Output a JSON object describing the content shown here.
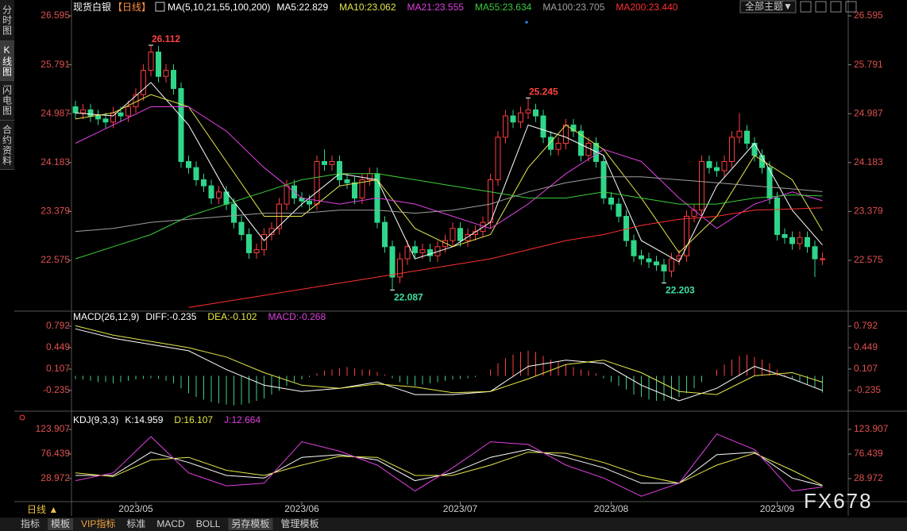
{
  "header": {
    "instrument": "现货白银",
    "period": "【日线】",
    "theme_button": "全部主题▼"
  },
  "sidebar": [
    "分时图",
    "K线图",
    "闪电图",
    "合约资料"
  ],
  "footer": {
    "period": "日线 ▲",
    "tabs": [
      "指标",
      "模板",
      "VIP指标",
      "标准",
      "MACD",
      "BOLL",
      "另存模板",
      "管理模板"
    ]
  },
  "watermark": "FX678",
  "chart_data": [
    {
      "type": "candlestick",
      "indicator": "MA(5,10,21,55,100,200)",
      "up_color": "#ff3b3b",
      "down_color": "#2fd68a",
      "ylim": [
        21.766,
        26.595
      ],
      "yticks": [
        26.595,
        25.791,
        24.987,
        24.183,
        23.379,
        22.575
      ],
      "date_ticks": [
        {
          "index": 8,
          "label": "2023/05"
        },
        {
          "index": 30,
          "label": "2023/06"
        },
        {
          "index": 51,
          "label": "2023/07"
        },
        {
          "index": 71,
          "label": "2023/08"
        },
        {
          "index": 93,
          "label": "2023/09"
        }
      ],
      "open": [
        25.1,
        25.0,
        25.05,
        24.95,
        24.9,
        24.85,
        25.0,
        24.95,
        25.1,
        25.3,
        25.7,
        26.0,
        25.6,
        25.7,
        25.4,
        24.2,
        24.1,
        23.9,
        23.8,
        23.6,
        23.7,
        23.5,
        23.2,
        23.0,
        22.7,
        22.75,
        23.0,
        23.1,
        23.5,
        23.8,
        23.6,
        23.55,
        23.5,
        24.2,
        24.15,
        24.2,
        23.9,
        23.85,
        23.6,
        23.9,
        24.0,
        23.2,
        22.8,
        22.3,
        22.6,
        22.8,
        22.7,
        22.75,
        22.65,
        22.8,
        22.9,
        23.1,
        22.9,
        23.0,
        23.05,
        23.2,
        23.9,
        24.6,
        24.95,
        24.85,
        25.0,
        25.05,
        24.95,
        24.6,
        24.4,
        24.5,
        24.8,
        24.7,
        24.3,
        24.5,
        24.2,
        23.6,
        23.5,
        23.3,
        22.9,
        22.65,
        22.6,
        22.55,
        22.5,
        22.4,
        22.6,
        22.65,
        23.3,
        23.4,
        24.2,
        24.1,
        24.05,
        24.2,
        24.6,
        24.7,
        24.5,
        24.3,
        24.1,
        23.6,
        23.0,
        22.95,
        22.85,
        22.95,
        22.8,
        22.6
      ],
      "high": [
        25.2,
        25.15,
        25.15,
        25.05,
        25.0,
        25.1,
        25.1,
        25.2,
        25.4,
        25.8,
        26.112,
        26.1,
        25.8,
        25.8,
        25.5,
        24.3,
        24.2,
        24.0,
        23.9,
        23.8,
        23.8,
        23.6,
        23.3,
        23.1,
        22.85,
        23.1,
        23.2,
        23.6,
        23.9,
        23.9,
        23.7,
        23.65,
        24.3,
        24.4,
        24.3,
        24.3,
        24.0,
        23.95,
        24.0,
        24.1,
        24.1,
        23.3,
        22.9,
        22.7,
        22.9,
        22.9,
        22.85,
        22.85,
        22.9,
        23.0,
        23.2,
        23.2,
        23.1,
        23.15,
        23.3,
        24.0,
        24.7,
        25.05,
        25.05,
        25.1,
        25.245,
        25.15,
        25.05,
        24.7,
        24.6,
        24.9,
        24.9,
        24.8,
        24.6,
        24.6,
        24.3,
        23.7,
        23.6,
        23.4,
        23.0,
        22.75,
        22.7,
        22.65,
        22.6,
        22.7,
        22.75,
        23.4,
        23.5,
        24.3,
        24.3,
        24.2,
        24.3,
        24.7,
        25.0,
        24.8,
        24.6,
        24.4,
        24.2,
        23.7,
        23.1,
        23.05,
        23.05,
        23.05,
        22.9,
        22.7
      ],
      "low": [
        24.9,
        24.9,
        24.85,
        24.8,
        24.75,
        24.75,
        24.85,
        24.85,
        25.0,
        25.2,
        25.6,
        25.5,
        25.5,
        25.3,
        24.1,
        24.0,
        23.8,
        23.7,
        23.5,
        23.5,
        23.4,
        23.1,
        22.9,
        22.6,
        22.6,
        22.65,
        22.9,
        23.0,
        23.4,
        23.5,
        23.45,
        23.4,
        23.4,
        24.05,
        24.05,
        23.8,
        23.75,
        23.5,
        23.5,
        23.8,
        23.1,
        22.7,
        22.087,
        22.2,
        22.5,
        22.6,
        22.6,
        22.55,
        22.55,
        22.7,
        22.8,
        22.8,
        22.8,
        22.9,
        22.95,
        23.1,
        23.8,
        24.5,
        24.75,
        24.75,
        24.9,
        24.85,
        24.5,
        24.3,
        24.3,
        24.4,
        24.6,
        24.2,
        24.2,
        24.1,
        23.5,
        23.4,
        23.2,
        22.8,
        22.55,
        22.5,
        22.45,
        22.4,
        22.203,
        22.3,
        22.5,
        22.55,
        23.2,
        23.3,
        24.0,
        23.95,
        23.95,
        24.1,
        24.5,
        24.4,
        24.2,
        24.0,
        23.5,
        22.9,
        22.85,
        22.75,
        22.75,
        22.7,
        22.3,
        22.5
      ],
      "close": [
        25.0,
        25.05,
        24.95,
        24.9,
        24.85,
        25.0,
        24.95,
        25.1,
        25.3,
        25.7,
        26.0,
        25.6,
        25.7,
        25.4,
        24.2,
        24.1,
        23.9,
        23.8,
        23.6,
        23.7,
        23.5,
        23.2,
        23.0,
        22.7,
        22.75,
        23.0,
        23.1,
        23.5,
        23.8,
        23.6,
        23.55,
        23.5,
        24.2,
        24.15,
        24.2,
        23.9,
        23.85,
        23.6,
        23.9,
        24.0,
        23.2,
        22.8,
        22.3,
        22.6,
        22.8,
        22.7,
        22.75,
        22.65,
        22.8,
        22.9,
        23.1,
        22.9,
        23.0,
        23.05,
        23.2,
        23.9,
        24.6,
        24.95,
        24.85,
        25.0,
        25.05,
        24.95,
        24.6,
        24.4,
        24.5,
        24.8,
        24.7,
        24.3,
        24.5,
        24.2,
        23.6,
        23.5,
        23.3,
        22.9,
        22.65,
        22.6,
        22.55,
        22.5,
        22.4,
        22.6,
        22.65,
        23.3,
        23.4,
        24.2,
        24.1,
        24.05,
        24.2,
        24.6,
        24.7,
        24.5,
        24.3,
        24.1,
        23.6,
        23.0,
        22.95,
        22.85,
        22.95,
        22.8,
        22.6,
        22.6
      ],
      "annotated_highs": [
        10,
        60
      ],
      "annotated_lows": [
        42,
        78
      ],
      "line_index": [
        0,
        5,
        10,
        15,
        20,
        25,
        30,
        35,
        40,
        45,
        50,
        55,
        60,
        65,
        70,
        75,
        80,
        85,
        90,
        95,
        99
      ],
      "series": [
        {
          "name": "MA5",
          "readout": "MA5:22.829",
          "color": "#ffffff",
          "values": [
            25.0,
            24.95,
            25.5,
            24.8,
            23.7,
            22.9,
            23.5,
            24.0,
            23.9,
            22.6,
            22.8,
            23.2,
            24.8,
            24.6,
            24.3,
            22.9,
            22.55,
            23.8,
            24.5,
            23.4,
            22.829
          ]
        },
        {
          "name": "MA10",
          "readout": "MA10:23.062",
          "color": "#e8e84a",
          "values": [
            24.9,
            25.0,
            25.3,
            25.1,
            24.2,
            23.3,
            23.3,
            23.8,
            23.9,
            23.1,
            22.8,
            23.0,
            24.1,
            24.8,
            24.4,
            23.6,
            22.7,
            23.3,
            24.3,
            23.9,
            23.062
          ]
        },
        {
          "name": "MA21",
          "readout": "MA21:23.555",
          "color": "#e040e0",
          "values": [
            24.5,
            24.8,
            25.1,
            25.1,
            24.7,
            24.1,
            23.6,
            23.5,
            23.6,
            23.5,
            23.3,
            23.1,
            23.5,
            24.0,
            24.4,
            24.2,
            23.6,
            23.1,
            23.5,
            23.7,
            23.555
          ]
        },
        {
          "name": "MA55",
          "readout": "MA55:23.634",
          "color": "#3ccc3c",
          "values": [
            22.6,
            22.8,
            23.0,
            23.3,
            23.5,
            23.7,
            23.9,
            24.0,
            24.0,
            23.9,
            23.8,
            23.7,
            23.6,
            23.6,
            23.7,
            23.6,
            23.5,
            23.5,
            23.6,
            23.65,
            23.634
          ]
        },
        {
          "name": "MA100",
          "readout": "MA100:23.705",
          "color": "#a0a0a0",
          "values": [
            23.05,
            23.1,
            23.2,
            23.25,
            23.3,
            23.35,
            23.35,
            23.4,
            23.4,
            23.35,
            23.4,
            23.5,
            23.7,
            23.85,
            23.95,
            23.95,
            23.9,
            23.85,
            23.8,
            23.75,
            23.705
          ]
        },
        {
          "name": "MA200",
          "readout": "MA200:23.440",
          "color": "#ff3030",
          "values": [
            null,
            null,
            null,
            21.8,
            21.9,
            22.0,
            22.1,
            22.2,
            22.3,
            22.4,
            22.5,
            22.6,
            22.75,
            22.9,
            23.0,
            23.15,
            23.25,
            23.3,
            23.4,
            23.42,
            23.44
          ]
        }
      ]
    },
    {
      "type": "macd",
      "indicator": "MACD(26,12,9)",
      "ylim": [
        -0.527,
        0.995
      ],
      "yticks": [
        0.792,
        0.449,
        0.107,
        -0.235
      ],
      "line_index": [
        0,
        5,
        10,
        15,
        20,
        25,
        30,
        35,
        40,
        45,
        50,
        55,
        60,
        65,
        70,
        75,
        80,
        85,
        90,
        95,
        99
      ],
      "series": [
        {
          "name": "DIFF",
          "readout": "DIFF:-0.235",
          "color": "#ffffff",
          "values": [
            0.75,
            0.6,
            0.5,
            0.4,
            0.1,
            -0.15,
            -0.25,
            -0.2,
            -0.1,
            -0.3,
            -0.3,
            -0.25,
            0.15,
            0.25,
            0.2,
            -0.15,
            -0.4,
            -0.2,
            0.15,
            -0.05,
            -0.235
          ]
        },
        {
          "name": "DEA",
          "readout": "DEA:-0.102",
          "color": "#e8e84a",
          "values": [
            0.8,
            0.65,
            0.55,
            0.45,
            0.3,
            0.05,
            -0.15,
            -0.2,
            -0.13,
            -0.18,
            -0.27,
            -0.25,
            -0.05,
            0.18,
            0.25,
            0.05,
            -0.25,
            -0.3,
            0.0,
            0.05,
            -0.102
          ]
        }
      ],
      "histogram": {
        "name": "MACD",
        "readout": "MACD:-0.268",
        "color": "#e040e0",
        "up_color": "#ff4040",
        "down_color": "#40d080",
        "values": [
          -0.05,
          -0.06,
          -0.08,
          -0.1,
          -0.1,
          -0.12,
          -0.1,
          -0.08,
          -0.06,
          -0.05,
          -0.04,
          -0.05,
          -0.08,
          -0.12,
          -0.2,
          -0.28,
          -0.34,
          -0.38,
          -0.42,
          -0.44,
          -0.46,
          -0.47,
          -0.46,
          -0.44,
          -0.4,
          -0.36,
          -0.3,
          -0.24,
          -0.16,
          -0.1,
          -0.06,
          -0.02,
          0.04,
          0.08,
          0.1,
          0.12,
          0.14,
          0.12,
          0.1,
          0.1,
          0.06,
          0.02,
          -0.04,
          -0.1,
          -0.14,
          -0.16,
          -0.14,
          -0.12,
          -0.1,
          -0.08,
          -0.06,
          -0.05,
          -0.04,
          -0.02,
          0.0,
          0.1,
          0.2,
          0.28,
          0.34,
          0.38,
          0.4,
          0.38,
          0.32,
          0.26,
          0.22,
          0.18,
          0.14,
          0.1,
          0.08,
          0.04,
          -0.04,
          -0.1,
          -0.16,
          -0.22,
          -0.3,
          -0.34,
          -0.38,
          -0.4,
          -0.4,
          -0.38,
          -0.34,
          -0.28,
          -0.2,
          -0.1,
          0.0,
          0.1,
          0.18,
          0.26,
          0.32,
          0.34,
          0.3,
          0.26,
          0.2,
          0.1,
          0.02,
          -0.04,
          -0.1,
          -0.14,
          -0.18,
          -0.268
        ]
      }
    },
    {
      "type": "kdj",
      "indicator": "KDJ(9,3,3)",
      "ylim": [
        -12.4,
        148.4
      ],
      "yticks": [
        123.907,
        76.439,
        28.972
      ],
      "line_index": [
        0,
        5,
        10,
        15,
        20,
        25,
        30,
        35,
        40,
        45,
        50,
        55,
        60,
        65,
        70,
        75,
        80,
        85,
        90,
        95,
        99
      ],
      "series": [
        {
          "name": "K",
          "readout": "K:14.959",
          "color": "#ffffff",
          "values": [
            35,
            35,
            80,
            60,
            35,
            30,
            70,
            75,
            65,
            25,
            40,
            70,
            85,
            70,
            50,
            20,
            20,
            75,
            80,
            30,
            14.959
          ]
        },
        {
          "name": "D",
          "readout": "D:16.107",
          "color": "#e8e84a",
          "values": [
            40,
            33,
            65,
            70,
            45,
            35,
            55,
            72,
            70,
            35,
            35,
            55,
            80,
            78,
            60,
            35,
            20,
            55,
            78,
            45,
            16.107
          ]
        },
        {
          "name": "J",
          "readout": "J:12.664",
          "color": "#e040e0",
          "values": [
            25,
            40,
            110,
            40,
            15,
            20,
            100,
            82,
            55,
            5,
            50,
            100,
            95,
            55,
            30,
            -5,
            20,
            115,
            85,
            5,
            12.664
          ]
        }
      ]
    }
  ]
}
